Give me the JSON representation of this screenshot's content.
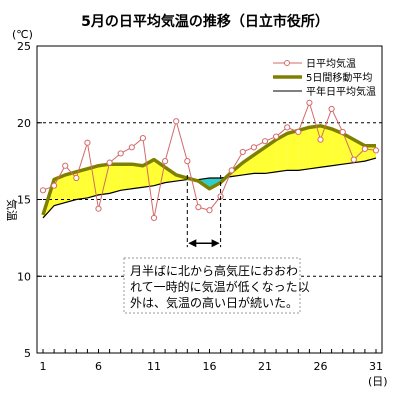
{
  "chart_data": {
    "type": "line",
    "title": "5月の日平均気温の推移（日立市役所）",
    "ylabel": "気温",
    "y_unit": "(℃)",
    "x_unit": "(日)",
    "xlim": [
      1,
      31
    ],
    "ylim": [
      5,
      25
    ],
    "x_ticks": [
      1,
      6,
      11,
      16,
      21,
      26,
      31
    ],
    "y_ticks": [
      5,
      10,
      15,
      20,
      25
    ],
    "grid": "dashed horizontal at 10, 15, 20",
    "legend_position": "top-right",
    "x": [
      1,
      2,
      3,
      4,
      5,
      6,
      7,
      8,
      9,
      10,
      11,
      12,
      13,
      14,
      15,
      16,
      17,
      18,
      19,
      20,
      21,
      22,
      23,
      24,
      25,
      26,
      27,
      28,
      29,
      30,
      31
    ],
    "series": [
      {
        "name": "日平均気温",
        "style": "line with hollow circle markers",
        "color": "#d46a6a",
        "values": [
          15.6,
          15.9,
          17.2,
          16.4,
          18.7,
          14.4,
          17.4,
          18.0,
          18.4,
          19.0,
          13.8,
          17.5,
          20.1,
          17.5,
          14.5,
          14.3,
          15.2,
          16.9,
          18.1,
          18.4,
          18.8,
          19.1,
          19.7,
          19.4,
          21.3,
          18.9,
          20.9,
          19.4,
          17.6,
          18.3,
          18.2
        ]
      },
      {
        "name": "5日間移動平均",
        "style": "thick line",
        "color": "#808000",
        "values": [
          14.0,
          16.3,
          16.6,
          16.8,
          17.0,
          17.2,
          17.3,
          17.3,
          17.3,
          17.2,
          17.6,
          17.1,
          16.6,
          16.4,
          16.2,
          15.7,
          16.1,
          16.8,
          17.4,
          17.9,
          18.4,
          18.9,
          19.3,
          19.5,
          19.7,
          19.8,
          19.6,
          19.3,
          18.9,
          18.5,
          18.5
        ]
      },
      {
        "name": "平年日平均気温",
        "style": "thin line",
        "color": "#000000",
        "values": [
          13.8,
          14.6,
          14.8,
          15.0,
          15.1,
          15.3,
          15.4,
          15.6,
          15.7,
          15.8,
          15.9,
          16.1,
          16.2,
          16.3,
          16.3,
          16.4,
          16.4,
          16.5,
          16.6,
          16.7,
          16.7,
          16.8,
          16.9,
          16.9,
          17.0,
          17.1,
          17.2,
          17.3,
          17.4,
          17.5,
          17.7
        ]
      }
    ],
    "fill_above_normal_color": "#ffff33",
    "fill_below_normal_color": "#33cccc",
    "bracket_days": [
      14,
      17
    ],
    "annotation_lines": [
      "月半ばに北から高気圧におおわ",
      "れて一時的に気温が低くなった以",
      "外は、気温の高い日が続いた。"
    ]
  }
}
